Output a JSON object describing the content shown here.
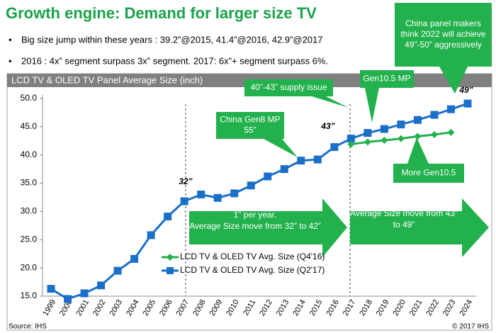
{
  "chart_data": {
    "type": "line",
    "title": "Growth engine: Demand for larger size TV",
    "bullets": [
      "Big size jump within these years : 39.2”@2015, 41.4”@2016, 42.9”@2017",
      "2016 : 4x” segment surpass 3x” segment. 2017: 6x”+ segment surpass 6%."
    ],
    "chart_title": "LCD TV & OLED TV Panel Average Size (inch)",
    "categories": [
      "1999",
      "2000",
      "2001",
      "2002",
      "2003",
      "2004",
      "2005",
      "2006",
      "2007",
      "2008",
      "2009",
      "2010",
      "2011",
      "2012",
      "2013",
      "2014",
      "2015",
      "2016",
      "2017",
      "2018",
      "2019",
      "2020",
      "2021",
      "2022",
      "2023",
      "2024"
    ],
    "series": [
      {
        "name": "LCD TV & OLED TV  Avg. Size (Q2'17)",
        "color": "#1a6fc9",
        "marker": "square",
        "values": [
          16.3,
          14.5,
          15.5,
          16.9,
          19.5,
          21.6,
          25.8,
          29.1,
          31.8,
          33.0,
          32.4,
          33.2,
          34.6,
          36.2,
          37.5,
          39.0,
          39.2,
          41.4,
          42.9,
          43.9,
          44.6,
          45.4,
          46.2,
          47.1,
          48.1,
          49.1
        ]
      },
      {
        "name": "LCD TV & OLED TV  Avg. Size (Q4'16)",
        "color": "#22b14c",
        "marker": "diamond",
        "values": [
          null,
          null,
          null,
          null,
          null,
          null,
          null,
          null,
          null,
          null,
          null,
          null,
          null,
          null,
          null,
          null,
          null,
          null,
          41.9,
          42.3,
          42.6,
          42.9,
          43.3,
          43.6,
          44.0,
          null
        ]
      }
    ],
    "ylim": [
      15,
      50
    ],
    "yticks": [
      {
        "value": 15,
        "label": "15.0"
      },
      {
        "value": 20,
        "label": "20.0"
      },
      {
        "value": 25,
        "label": "25.0"
      },
      {
        "value": 30,
        "label": "30.0"
      },
      {
        "value": 35,
        "label": "35.0"
      },
      {
        "value": 40,
        "label": "40.0"
      },
      {
        "value": 45,
        "label": "45.0"
      },
      {
        "value": 50,
        "label": "50.0"
      }
    ],
    "point_labels": [
      "32”",
      "43”",
      "49”"
    ],
    "callouts": [
      {
        "lines": [
          "40”-43” supply issue"
        ]
      },
      {
        "lines": [
          "Gen10.5 MP"
        ]
      },
      {
        "lines": [
          "China panel makers",
          "think 2022 will achieve",
          "49”-50” aggressively"
        ]
      },
      {
        "lines": [
          "China Gen8 MP",
          "55”"
        ]
      },
      {
        "lines": [
          "More Gen10.5"
        ]
      }
    ],
    "arrows": [
      {
        "lines": [
          "1” per year.",
          "Average Size move from 32” to 42”"
        ]
      },
      {
        "lines": [
          "Average Size move from 43”",
          "to 49”"
        ]
      }
    ],
    "source": "Source: IHS",
    "copyright": "© 2017 IHS"
  }
}
